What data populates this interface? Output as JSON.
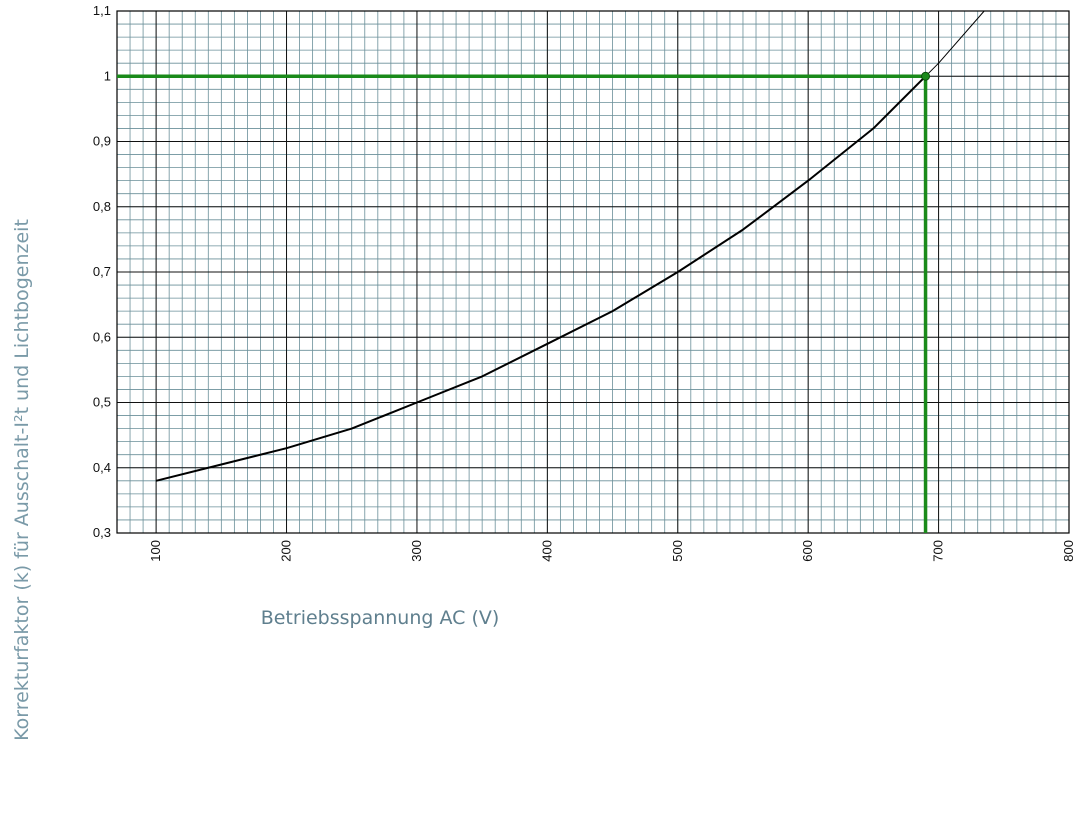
{
  "chart_data": {
    "type": "line",
    "xlabel": "Betriebsspannung AC (V)",
    "ylabel": "Korrekturfaktor (k) für Ausschalt-I²t und Lichtbogenzeit",
    "xlim": [
      70,
      800
    ],
    "ylim": [
      0.3,
      1.1
    ],
    "x_ticks": [
      100,
      200,
      300,
      400,
      500,
      600,
      700,
      800
    ],
    "x_tick_labels": [
      "100",
      "200",
      "300",
      "400",
      "500",
      "600",
      "700",
      "800"
    ],
    "y_ticks": [
      0.3,
      0.4,
      0.5,
      0.6,
      0.7,
      0.8,
      0.9,
      1.0,
      1.1
    ],
    "y_tick_labels": [
      "0,3",
      "0,4",
      "0,5",
      "0,6",
      "0,7",
      "0,8",
      "0,9",
      "1",
      "1,1"
    ],
    "grid": true,
    "series": [
      {
        "x": [
          100,
          150,
          200,
          250,
          300,
          350,
          400,
          450,
          500,
          550,
          600,
          650,
          690,
          700,
          735
        ],
        "y": [
          0.38,
          0.405,
          0.43,
          0.46,
          0.5,
          0.54,
          0.59,
          0.64,
          0.7,
          0.765,
          0.84,
          0.92,
          1.0,
          1.02,
          1.1
        ],
        "color": "#000000"
      }
    ],
    "reference_point": {
      "x": 690,
      "y": 1.0,
      "color": "#1a8a1a"
    }
  }
}
